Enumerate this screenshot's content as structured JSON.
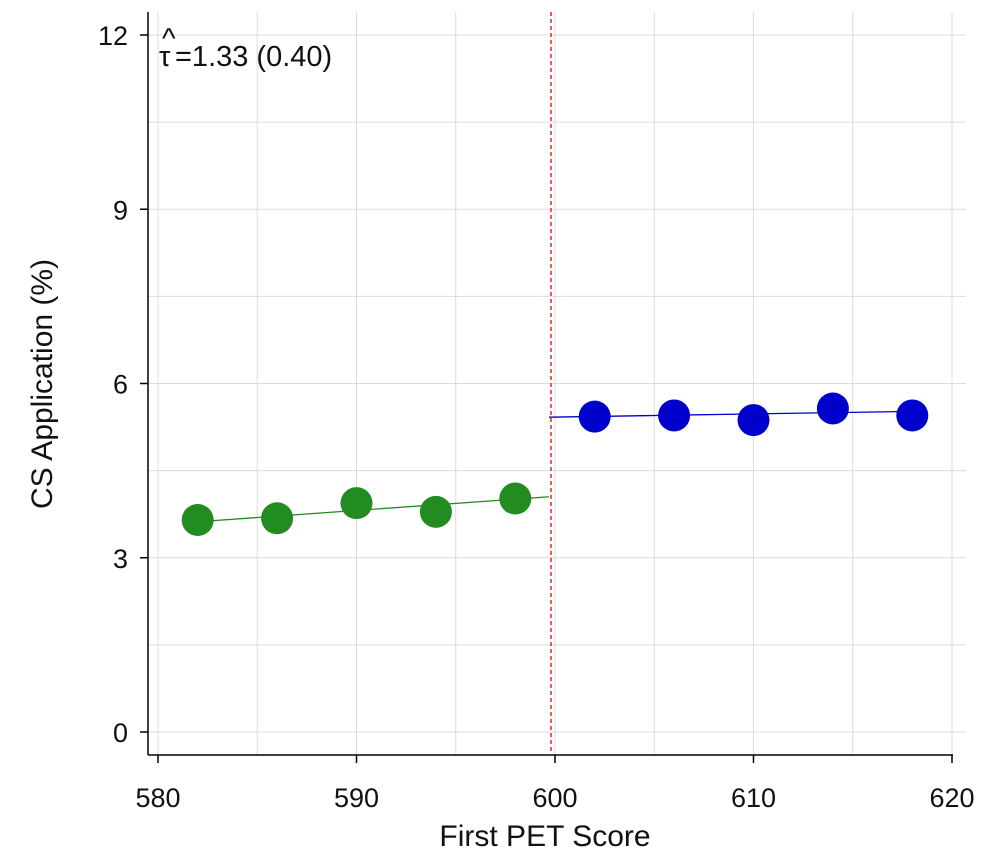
{
  "chart_data": {
    "type": "scatter",
    "xlabel": "First PET Score",
    "ylabel": "CS Application (%)",
    "xlim": [
      580,
      620
    ],
    "ylim": [
      0,
      12
    ],
    "xticks": [
      580,
      590,
      600,
      610,
      620
    ],
    "yticks": [
      0,
      3,
      6,
      9,
      12
    ],
    "grid": true,
    "cutoff": 600,
    "annotation": {
      "hat": "^",
      "symbol": "τ",
      "text": "=1.33 (0.40)"
    },
    "series": [
      {
        "color": "#228B22",
        "points": [
          {
            "x": 582,
            "y": 3.65
          },
          {
            "x": 586,
            "y": 3.68
          },
          {
            "x": 590,
            "y": 3.94
          },
          {
            "x": 594,
            "y": 3.79
          },
          {
            "x": 598,
            "y": 4.02
          }
        ],
        "fit": {
          "x": [
            582,
            599.7
          ],
          "y": [
            3.62,
            4.05
          ]
        }
      },
      {
        "color": "#0000CD",
        "points": [
          {
            "x": 602,
            "y": 5.43
          },
          {
            "x": 606,
            "y": 5.45
          },
          {
            "x": 610,
            "y": 5.37
          },
          {
            "x": 614,
            "y": 5.57
          },
          {
            "x": 618,
            "y": 5.45
          }
        ],
        "fit": {
          "x": [
            599.7,
            618
          ],
          "y": [
            5.42,
            5.52
          ]
        }
      }
    ],
    "cutoff_color": "#E8212B",
    "grid_color": "#DCDCDC"
  }
}
